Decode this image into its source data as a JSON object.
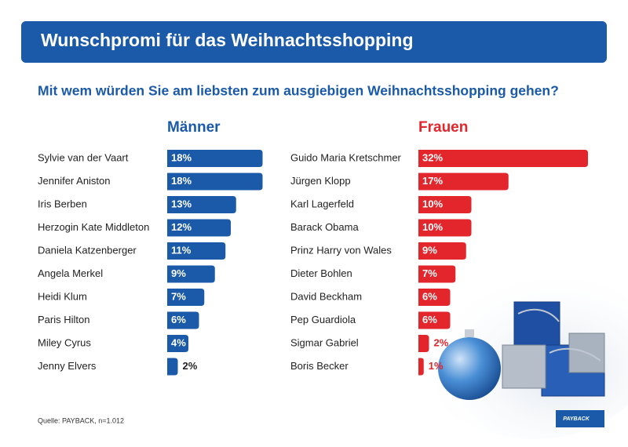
{
  "header": {
    "title": "Wunschpromi für das Weihnachtsshopping",
    "subtitle": "Mit wem würden Sie am liebsten zum ausgiebigen Weihnachtsshopping gehen?"
  },
  "chart_data": [
    {
      "type": "bar",
      "title": "Männer",
      "color": "#1a5aa8",
      "categories": [
        "Sylvie van der Vaart",
        "Jennifer Aniston",
        "Iris Berben",
        "Herzogin Kate Middleton",
        "Daniela Katzenberger",
        "Angela Merkel",
        "Heidi Klum",
        "Paris Hilton",
        "Miley Cyrus",
        "Jenny Elvers"
      ],
      "values": [
        18,
        18,
        13,
        12,
        11,
        9,
        7,
        6,
        4,
        2
      ],
      "value_labels": [
        "18%",
        "18%",
        "13%",
        "12%",
        "11%",
        "9%",
        "7%",
        "6%",
        "4%",
        "2%"
      ]
    },
    {
      "type": "bar",
      "title": "Frauen",
      "color": "#e3262c",
      "categories": [
        "Guido Maria Kretschmer",
        "Jürgen Klopp",
        "Karl Lagerfeld",
        "Barack Obama",
        "Prinz Harry von Wales",
        "Dieter Bohlen",
        "David Beckham",
        "Pep Guardiola",
        "Sigmar Gabriel",
        "Boris Becker"
      ],
      "values": [
        32,
        17,
        10,
        10,
        9,
        7,
        6,
        6,
        2,
        1
      ],
      "value_labels": [
        "32%",
        "17%",
        "10%",
        "10%",
        "9%",
        "7%",
        "6%",
        "6%",
        "2%",
        "1%"
      ]
    }
  ],
  "footer": {
    "source": "Quelle: PAYBACK, n=1.012",
    "logo": "PAYBACK"
  }
}
